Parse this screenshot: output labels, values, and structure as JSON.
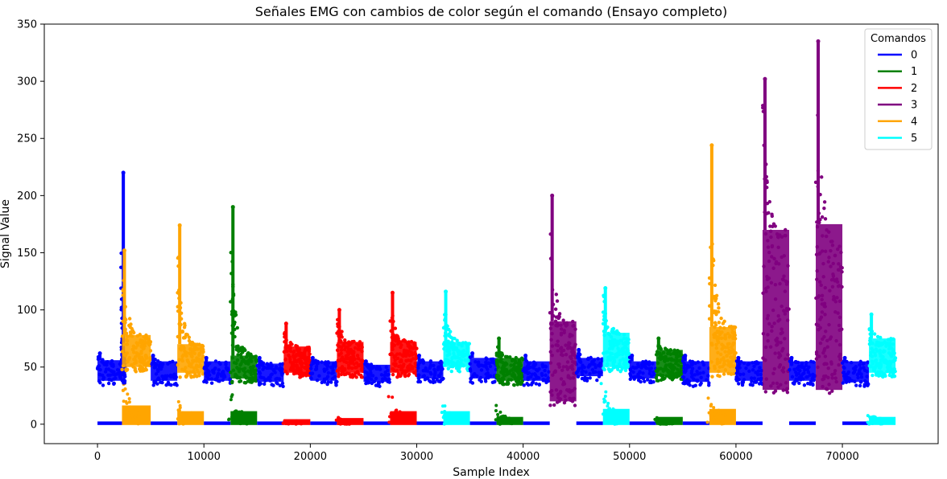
{
  "chart_data": {
    "type": "scatter",
    "title": "Señales EMG con cambios de color según el comando (Ensayo completo)",
    "xlabel": "Sample Index",
    "ylabel": "Signal Value",
    "xlim": [
      -5000,
      79000
    ],
    "ylim": [
      -17,
      350
    ],
    "xticks": [
      0,
      10000,
      20000,
      30000,
      40000,
      50000,
      60000,
      70000
    ],
    "yticks": [
      0,
      50,
      100,
      150,
      200,
      250,
      300,
      350
    ],
    "grid": false,
    "legend": {
      "title": "Comandos",
      "placement": "top-right",
      "entries": [
        {
          "name": "0",
          "color": "#0000ff"
        },
        {
          "name": "1",
          "color": "#008000"
        },
        {
          "name": "2",
          "color": "#ff0000"
        },
        {
          "name": "3",
          "color": "#800080"
        },
        {
          "name": "4",
          "color": "#ffa500"
        },
        {
          "name": "5",
          "color": "#00ffff"
        }
      ]
    },
    "segments": [
      {
        "command": "0",
        "x_start": 0,
        "x_end": 2300,
        "baseline_band": [
          38,
          56
        ],
        "peak": 62
      },
      {
        "command": "0",
        "x_start": 2200,
        "x_end": 2600,
        "baseline_band": [
          40,
          60
        ],
        "peak": 220
      },
      {
        "command": "4",
        "x_start": 2300,
        "x_end": 5000,
        "baseline_band": [
          50,
          78
        ],
        "peak": 152
      },
      {
        "command": "0",
        "x_start": 5000,
        "x_end": 7500,
        "baseline_band": [
          38,
          55
        ],
        "peak": 60
      },
      {
        "command": "4",
        "x_start": 7500,
        "x_end": 10000,
        "baseline_band": [
          45,
          70
        ],
        "peak": 174
      },
      {
        "command": "0",
        "x_start": 10000,
        "x_end": 12500,
        "baseline_band": [
          38,
          55
        ],
        "peak": 58
      },
      {
        "command": "1",
        "x_start": 12500,
        "x_end": 15000,
        "baseline_band": [
          40,
          60
        ],
        "peak": 190
      },
      {
        "command": "0",
        "x_start": 15000,
        "x_end": 17500,
        "baseline_band": [
          37,
          53
        ],
        "peak": 58
      },
      {
        "command": "2",
        "x_start": 17500,
        "x_end": 20000,
        "baseline_band": [
          45,
          68
        ],
        "peak": 88
      },
      {
        "command": "0",
        "x_start": 20000,
        "x_end": 22500,
        "baseline_band": [
          38,
          55
        ],
        "peak": 58
      },
      {
        "command": "2",
        "x_start": 22500,
        "x_end": 25000,
        "baseline_band": [
          45,
          72
        ],
        "peak": 100
      },
      {
        "command": "0",
        "x_start": 25000,
        "x_end": 27500,
        "baseline_band": [
          37,
          52
        ],
        "peak": 55
      },
      {
        "command": "2",
        "x_start": 27500,
        "x_end": 30000,
        "baseline_band": [
          45,
          72
        ],
        "peak": 115
      },
      {
        "command": "0",
        "x_start": 30000,
        "x_end": 32500,
        "baseline_band": [
          40,
          55
        ],
        "peak": 60
      },
      {
        "command": "5",
        "x_start": 32500,
        "x_end": 35000,
        "baseline_band": [
          50,
          72
        ],
        "peak": 116
      },
      {
        "command": "0",
        "x_start": 35000,
        "x_end": 37500,
        "baseline_band": [
          40,
          58
        ],
        "peak": 62
      },
      {
        "command": "1",
        "x_start": 37500,
        "x_end": 40000,
        "baseline_band": [
          38,
          58
        ],
        "peak": 75
      },
      {
        "command": "0",
        "x_start": 40000,
        "x_end": 42500,
        "baseline_band": [
          38,
          55
        ],
        "peak": 60
      },
      {
        "command": "3",
        "x_start": 42500,
        "x_end": 45000,
        "baseline_band": [
          20,
          90
        ],
        "peak": 200
      },
      {
        "command": "0",
        "x_start": 45000,
        "x_end": 47500,
        "baseline_band": [
          42,
          58
        ],
        "peak": 65
      },
      {
        "command": "5",
        "x_start": 47500,
        "x_end": 50000,
        "baseline_band": [
          50,
          80
        ],
        "peak": 119
      },
      {
        "command": "0",
        "x_start": 50000,
        "x_end": 52500,
        "baseline_band": [
          40,
          55
        ],
        "peak": 60
      },
      {
        "command": "1",
        "x_start": 52500,
        "x_end": 55000,
        "baseline_band": [
          42,
          65
        ],
        "peak": 75
      },
      {
        "command": "0",
        "x_start": 55000,
        "x_end": 57500,
        "baseline_band": [
          37,
          55
        ],
        "peak": 60
      },
      {
        "command": "4",
        "x_start": 57500,
        "x_end": 60000,
        "baseline_band": [
          45,
          85
        ],
        "peak": 244
      },
      {
        "command": "0",
        "x_start": 60000,
        "x_end": 62500,
        "baseline_band": [
          38,
          55
        ],
        "peak": 58
      },
      {
        "command": "3",
        "x_start": 62500,
        "x_end": 65000,
        "baseline_band": [
          30,
          170
        ],
        "peak": 302
      },
      {
        "command": "0",
        "x_start": 65000,
        "x_end": 67500,
        "baseline_band": [
          38,
          55
        ],
        "peak": 58
      },
      {
        "command": "3",
        "x_start": 67500,
        "x_end": 70000,
        "baseline_band": [
          30,
          175
        ],
        "peak": 335
      },
      {
        "command": "0",
        "x_start": 70000,
        "x_end": 72500,
        "baseline_band": [
          37,
          55
        ],
        "peak": 58
      },
      {
        "command": "5",
        "x_start": 72500,
        "x_end": 75000,
        "baseline_band": [
          45,
          75
        ],
        "peak": 96
      }
    ],
    "low_channel": [
      {
        "command": "0",
        "x_start": 0,
        "x_end": 2300,
        "band": [
          0,
          1
        ]
      },
      {
        "command": "4",
        "x_start": 2300,
        "x_end": 5000,
        "band": [
          0,
          15
        ],
        "peak": 62
      },
      {
        "command": "0",
        "x_start": 5000,
        "x_end": 7500,
        "band": [
          0,
          1
        ]
      },
      {
        "command": "4",
        "x_start": 7500,
        "x_end": 10000,
        "band": [
          0,
          10
        ],
        "peak": 25
      },
      {
        "command": "0",
        "x_start": 10000,
        "x_end": 12500,
        "band": [
          0,
          1
        ]
      },
      {
        "command": "1",
        "x_start": 12500,
        "x_end": 15000,
        "band": [
          0,
          10
        ],
        "peak": 40
      },
      {
        "command": "0",
        "x_start": 15000,
        "x_end": 17500,
        "band": [
          0,
          1
        ]
      },
      {
        "command": "2",
        "x_start": 17500,
        "x_end": 20000,
        "band": [
          0,
          3
        ],
        "peak": 4
      },
      {
        "command": "0",
        "x_start": 20000,
        "x_end": 22500,
        "band": [
          0,
          1
        ]
      },
      {
        "command": "2",
        "x_start": 22500,
        "x_end": 25000,
        "band": [
          0,
          4
        ],
        "peak": 6
      },
      {
        "command": "0",
        "x_start": 25000,
        "x_end": 27500,
        "band": [
          0,
          1
        ]
      },
      {
        "command": "2",
        "x_start": 27500,
        "x_end": 30000,
        "band": [
          0,
          10
        ],
        "peak": 30
      },
      {
        "command": "0",
        "x_start": 30000,
        "x_end": 32500,
        "band": [
          0,
          1
        ]
      },
      {
        "command": "5",
        "x_start": 32500,
        "x_end": 35000,
        "band": [
          0,
          10
        ],
        "peak": 20
      },
      {
        "command": "0",
        "x_start": 35000,
        "x_end": 37500,
        "band": [
          0,
          1
        ]
      },
      {
        "command": "1",
        "x_start": 37500,
        "x_end": 40000,
        "band": [
          0,
          5
        ],
        "peak": 20
      },
      {
        "command": "0",
        "x_start": 40000,
        "x_end": 42500,
        "band": [
          0,
          1
        ]
      },
      {
        "command": "0",
        "x_start": 45000,
        "x_end": 47500,
        "band": [
          0,
          1
        ]
      },
      {
        "command": "5",
        "x_start": 47500,
        "x_end": 50000,
        "band": [
          0,
          12
        ],
        "peak": 42
      },
      {
        "command": "0",
        "x_start": 50000,
        "x_end": 52500,
        "band": [
          0,
          1
        ]
      },
      {
        "command": "1",
        "x_start": 52500,
        "x_end": 55000,
        "band": [
          0,
          5
        ],
        "peak": 8
      },
      {
        "command": "0",
        "x_start": 55000,
        "x_end": 57500,
        "band": [
          0,
          1
        ]
      },
      {
        "command": "4",
        "x_start": 57500,
        "x_end": 60000,
        "band": [
          0,
          12
        ],
        "peak": 25
      },
      {
        "command": "0",
        "x_start": 60000,
        "x_end": 62500,
        "band": [
          0,
          1
        ]
      },
      {
        "command": "0",
        "x_start": 65000,
        "x_end": 67500,
        "band": [
          0,
          1
        ]
      },
      {
        "command": "0",
        "x_start": 70000,
        "x_end": 72500,
        "band": [
          0,
          1
        ]
      },
      {
        "command": "5",
        "x_start": 72500,
        "x_end": 75000,
        "band": [
          0,
          5
        ],
        "peak": 10
      }
    ]
  }
}
